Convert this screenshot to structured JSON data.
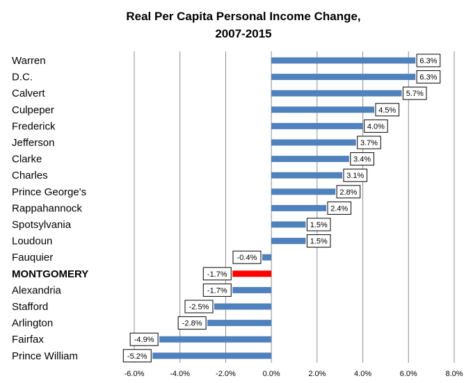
{
  "chart_data": {
    "type": "bar",
    "orientation": "horizontal",
    "title": "Real Per Capita Personal Income Change, 2007-2015",
    "title_lines": [
      "Real Per Capita Personal Income Change,",
      "2007-2015"
    ],
    "categories": [
      "Warren",
      "D.C.",
      "Calvert",
      "Culpeper",
      "Frederick",
      "Jefferson",
      "Clarke",
      "Charles",
      "Prince George's",
      "Rappahannock",
      "Spotsylvania",
      "Loudoun",
      "Fauquier",
      "MONTGOMERY",
      "Alexandria",
      "Stafford",
      "Arlington",
      "Fairfax",
      "Prince William"
    ],
    "values": [
      6.3,
      6.3,
      5.7,
      4.5,
      4.0,
      3.7,
      3.4,
      3.1,
      2.8,
      2.4,
      1.5,
      1.5,
      -0.4,
      -1.7,
      -1.7,
      -2.5,
      -2.8,
      -4.9,
      -5.2
    ],
    "data_labels": [
      "6.3%",
      "6.3%",
      "5.7%",
      "4.5%",
      "4.0%",
      "3.7%",
      "3.4%",
      "3.1%",
      "2.8%",
      "2.4%",
      "1.5%",
      "1.5%",
      "-0.4%",
      "-1.7%",
      "-1.7%",
      "-2.5%",
      "-2.8%",
      "-4.9%",
      "-5.2%"
    ],
    "highlight_category": "MONTGOMERY",
    "xlim": [
      -6.0,
      8.0
    ],
    "xticks": [
      -6,
      -4,
      -2,
      0,
      2,
      4,
      6,
      8
    ],
    "xtick_labels": [
      "-6.0%",
      "-4.0%",
      "-2.0%",
      "0.0%",
      "2.0%",
      "4.0%",
      "6.0%",
      "8.0%"
    ],
    "xlabel": "",
    "ylabel": "",
    "grid": "vertical",
    "legend": "none",
    "colors": {
      "bar": "#4f81bd",
      "highlight": "#ff0000",
      "grid": "#8c8c8c",
      "axis": "#8c8c8c"
    }
  }
}
